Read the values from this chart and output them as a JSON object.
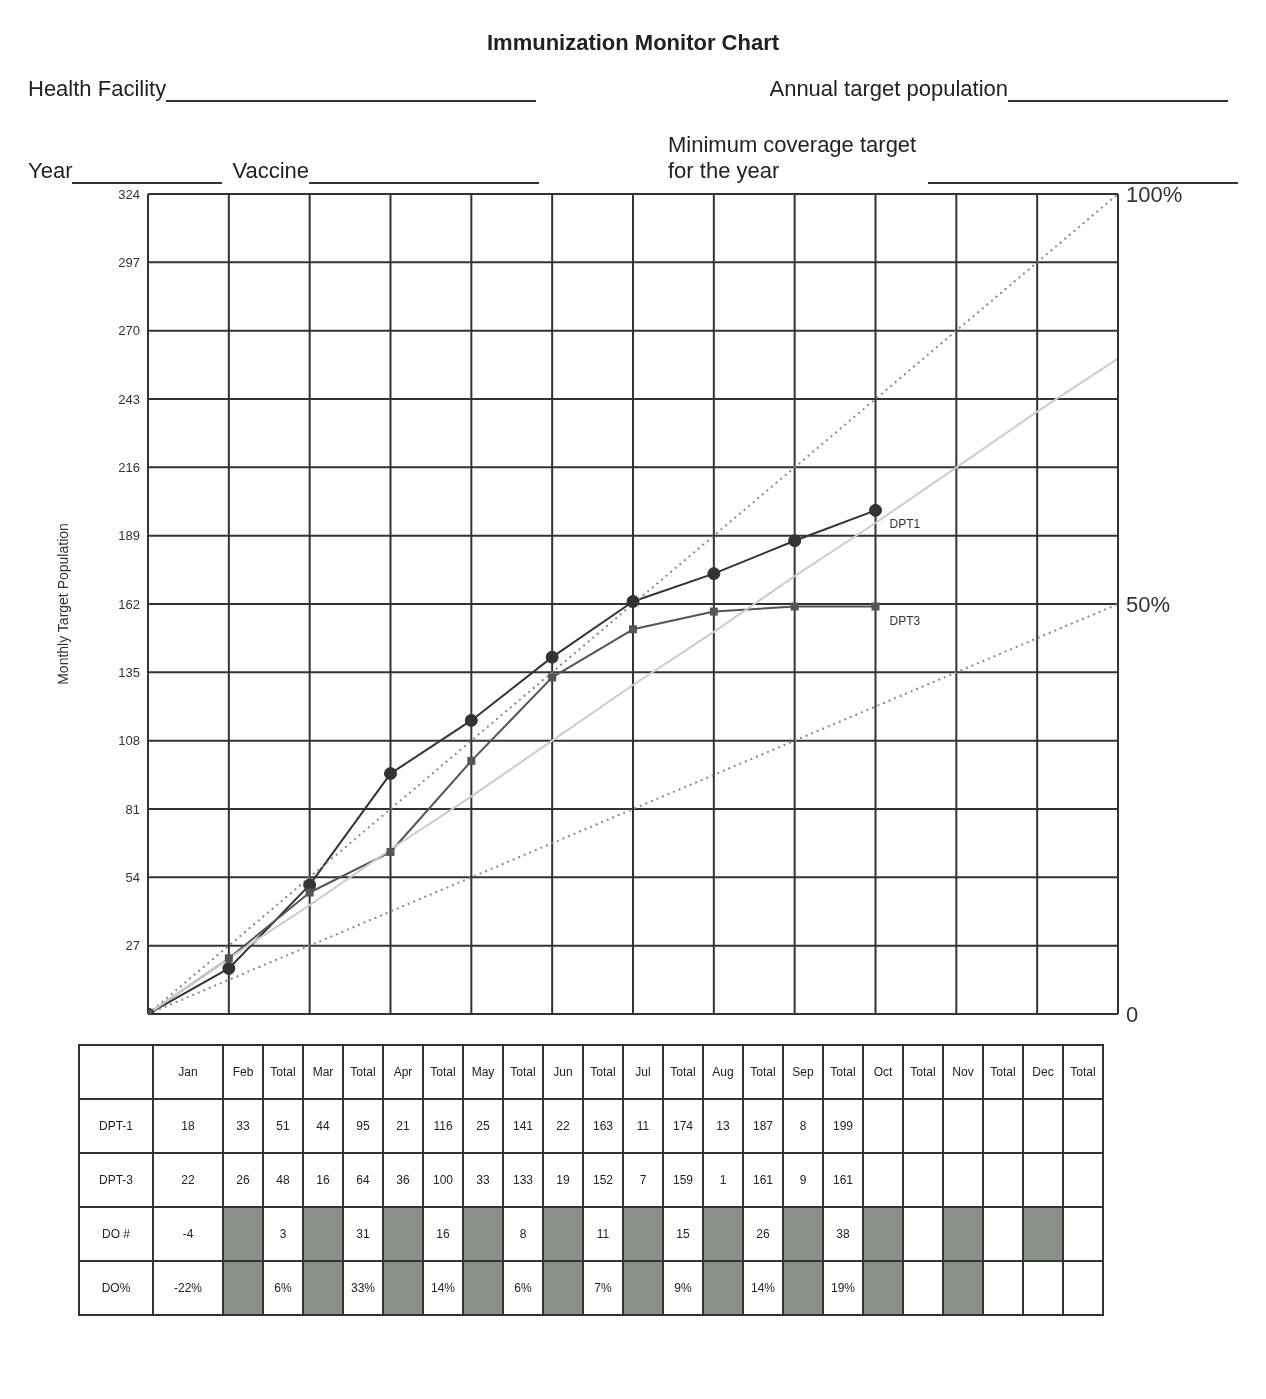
{
  "chart_data": [
    {
      "type": "line",
      "title": "Immunization Monitor Chart",
      "ylabel": "Monthly Target Population",
      "annotations": [
        "Health Facility",
        "Annual target population",
        "Year",
        "Vaccine",
        "Minimum coverage target for the year"
      ],
      "categories": [
        null,
        null,
        null,
        null,
        null,
        null,
        null,
        null,
        null,
        null,
        null,
        null,
        null
      ],
      "ylim": [
        0,
        324
      ],
      "yticks": [
        {
          "value": 0,
          "label": null
        },
        27,
        54,
        81,
        108,
        135,
        162,
        189,
        216,
        243,
        270,
        297,
        324
      ],
      "y2lim": [
        0,
        100
      ],
      "y2ticks": [
        0,
        {
          "value": 50,
          "label": "50%"
        },
        {
          "value": 100,
          "label": "100%"
        }
      ],
      "tick_labels": "y",
      "grid": true,
      "legend": false,
      "series": [
        {
          "name": "DPT1",
          "color": "#333333",
          "marker": "circle",
          "line_style": "solid",
          "values": [
            0,
            18,
            51,
            95,
            116,
            141,
            163,
            174,
            187,
            199,
            null,
            null,
            null
          ]
        },
        {
          "name": "DPT3",
          "color": "#555555",
          "marker": "square",
          "line_style": "solid",
          "values": [
            0,
            22,
            48,
            64,
            100,
            133,
            152,
            159,
            161,
            161,
            null,
            null,
            null
          ]
        },
        {
          "color": "#888888",
          "marker": "none",
          "line_style": "dotted",
          "values": [
            0,
            27,
            54,
            81,
            108,
            135,
            162,
            189,
            216,
            243,
            270,
            297,
            324
          ]
        },
        {
          "color": "#cccccc",
          "marker": "none",
          "line_style": "solid",
          "values": [
            0,
            22,
            43,
            65,
            86,
            108,
            130,
            151,
            173,
            194,
            216,
            238,
            259
          ]
        },
        {
          "color": "#888888",
          "marker": "none",
          "line_style": "dotted",
          "values": [
            0,
            13.5,
            27,
            40.5,
            54,
            67.5,
            81,
            94.5,
            108,
            121.5,
            135,
            148.5,
            162
          ]
        }
      ]
    },
    {
      "type": "heatmap",
      "categories": [
        "Jan",
        "Feb",
        "Total",
        "Mar",
        "Total",
        "Apr",
        "Total",
        "May",
        "Total",
        "Jun",
        "Total",
        "Jul",
        "Total",
        "Aug",
        "Total",
        "Sep",
        "Total",
        "Oct",
        "Total",
        "Nov",
        "Total",
        "Dec",
        "Total"
      ],
      "y_categories": [
        "DPT-1",
        "DPT-3",
        "DO #",
        "DO%"
      ],
      "cells": [
        [
          18,
          33,
          51,
          44,
          95,
          21,
          116,
          25,
          141,
          22,
          163,
          11,
          174,
          13,
          187,
          8,
          199,
          null,
          null,
          null,
          null,
          null,
          null
        ],
        [
          22,
          26,
          48,
          16,
          64,
          36,
          100,
          33,
          133,
          19,
          152,
          7,
          159,
          1,
          161,
          9,
          161,
          null,
          null,
          null,
          null,
          null,
          null
        ],
        [
          -4,
          null,
          3,
          null,
          31,
          null,
          16,
          null,
          8,
          null,
          11,
          null,
          15,
          null,
          26,
          null,
          38,
          null,
          null,
          null,
          null,
          null,
          null
        ],
        [
          -22,
          null,
          6,
          null,
          33,
          null,
          14,
          null,
          6,
          null,
          7,
          null,
          9,
          null,
          14,
          null,
          19,
          null,
          null,
          null,
          null,
          null,
          null
        ]
      ],
      "cell_labels": [
        [
          "18",
          "33",
          "51",
          "44",
          "95",
          "21",
          "116",
          "25",
          "141",
          "22",
          "163",
          "11",
          "174",
          "13",
          "187",
          "8",
          "199",
          null,
          null,
          null,
          null,
          null,
          null
        ],
        [
          "22",
          "26",
          "48",
          "16",
          "64",
          "36",
          "100",
          "33",
          "133",
          "19",
          "152",
          "7",
          "159",
          "1",
          "161",
          "9",
          "161",
          null,
          null,
          null,
          null,
          null,
          null
        ],
        [
          "-4",
          null,
          "3",
          null,
          "31",
          null,
          "16",
          null,
          "8",
          null,
          "11",
          null,
          "15",
          null,
          "26",
          null,
          "38",
          null,
          null,
          null,
          null,
          null,
          null
        ],
        [
          "-22%",
          null,
          "6%",
          null,
          "33%",
          null,
          "14%",
          null,
          "6%",
          null,
          "7%",
          null,
          "9%",
          null,
          "14%",
          null,
          "19%",
          null,
          null,
          null,
          null,
          null,
          null
        ]
      ],
      "colors": [
        [
          null,
          null,
          null,
          null,
          null,
          null,
          null,
          null,
          null,
          null,
          null,
          null,
          null,
          null,
          null,
          null,
          null,
          null,
          null,
          null,
          null,
          null,
          null
        ],
        [
          null,
          null,
          null,
          null,
          null,
          null,
          null,
          null,
          null,
          null,
          null,
          null,
          null,
          null,
          null,
          null,
          null,
          null,
          null,
          null,
          null,
          null,
          null
        ],
        [
          null,
          "#8a8f8a",
          null,
          "#8a8f8a",
          null,
          "#8a8f8a",
          null,
          "#8a8f8a",
          null,
          "#8a8f8a",
          null,
          "#8a8f8a",
          null,
          "#8a8f8a",
          null,
          "#8a8f8a",
          null,
          "#8a8f8a",
          null,
          "#8a8f8a",
          null,
          "#8a8f8a",
          null
        ],
        [
          null,
          "#8a8f8a",
          null,
          "#8a8f8a",
          null,
          "#8a8f8a",
          null,
          "#8a8f8a",
          null,
          "#8a8f8a",
          null,
          "#8a8f8a",
          null,
          "#8a8f8a",
          null,
          "#8a8f8a",
          null,
          "#8a8f8a",
          null,
          "#8a8f8a",
          null
        ]
      ]
    }
  ]
}
